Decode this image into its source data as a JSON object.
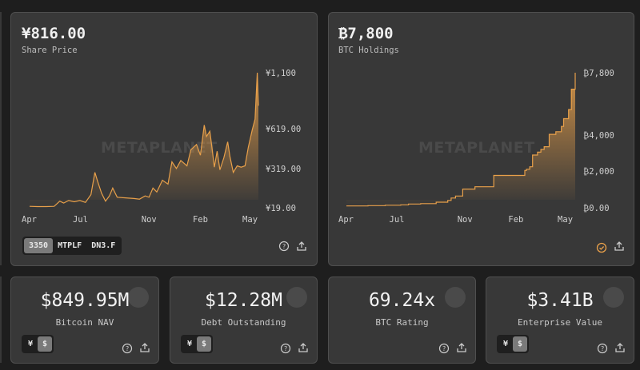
{
  "colors": {
    "accent": "#e8a04a",
    "card": "#383838",
    "background": "#1e1e1e"
  },
  "share_card": {
    "value": "¥816.00",
    "label": "Share Price",
    "watermark": "METAPLANET",
    "tickers": [
      {
        "label": "3350",
        "selected": true
      },
      {
        "label": "MTPLF",
        "selected": false
      },
      {
        "label": "DN3.F",
        "selected": false
      }
    ],
    "icons": [
      "help-circle-icon",
      "share-icon"
    ]
  },
  "btc_card": {
    "value": "₿7,800",
    "label": "BTC Holdings",
    "watermark": "METAPLANET",
    "icons": [
      "verified-check-icon",
      "share-icon"
    ]
  },
  "chart_data": [
    {
      "type": "area",
      "series_label": "Share Price",
      "x_ticks": [
        {
          "label": "Apr",
          "date": "2024-04-01"
        },
        {
          "label": "Jul",
          "date": "2024-07-01"
        },
        {
          "label": "Nov",
          "date": "2024-11-01"
        },
        {
          "label": "Feb",
          "date": "2025-02-01"
        },
        {
          "label": "May",
          "date": "2025-05-01"
        }
      ],
      "y_ticks": [
        {
          "label": "¥19.00",
          "value": 19
        },
        {
          "label": "¥319.00",
          "value": 319
        },
        {
          "label": "¥619.00",
          "value": 619
        },
        {
          "label": "¥1,100",
          "value": 1100
        }
      ],
      "points": [
        [
          "2024-04-01",
          30
        ],
        [
          "2024-04-15",
          28
        ],
        [
          "2024-05-01",
          28
        ],
        [
          "2024-05-15",
          30
        ],
        [
          "2024-05-25",
          70
        ],
        [
          "2024-06-01",
          55
        ],
        [
          "2024-06-10",
          75
        ],
        [
          "2024-06-20",
          65
        ],
        [
          "2024-06-30",
          75
        ],
        [
          "2024-07-10",
          60
        ],
        [
          "2024-07-20",
          120
        ],
        [
          "2024-07-27",
          290
        ],
        [
          "2024-08-01",
          220
        ],
        [
          "2024-08-08",
          130
        ],
        [
          "2024-08-15",
          70
        ],
        [
          "2024-08-22",
          110
        ],
        [
          "2024-08-28",
          170
        ],
        [
          "2024-09-05",
          100
        ],
        [
          "2024-09-20",
          95
        ],
        [
          "2024-10-05",
          90
        ],
        [
          "2024-10-15",
          85
        ],
        [
          "2024-10-25",
          110
        ],
        [
          "2024-11-01",
          100
        ],
        [
          "2024-11-08",
          170
        ],
        [
          "2024-11-15",
          140
        ],
        [
          "2024-11-25",
          230
        ],
        [
          "2024-12-05",
          200
        ],
        [
          "2024-12-12",
          370
        ],
        [
          "2024-12-20",
          320
        ],
        [
          "2024-12-28",
          380
        ],
        [
          "2025-01-08",
          340
        ],
        [
          "2025-01-15",
          460
        ],
        [
          "2025-01-25",
          500
        ],
        [
          "2025-02-01",
          420
        ],
        [
          "2025-02-08",
          650
        ],
        [
          "2025-02-12",
          560
        ],
        [
          "2025-02-18",
          600
        ],
        [
          "2025-02-22",
          470
        ],
        [
          "2025-02-26",
          330
        ],
        [
          "2025-03-03",
          450
        ],
        [
          "2025-03-08",
          310
        ],
        [
          "2025-03-15",
          400
        ],
        [
          "2025-03-22",
          520
        ],
        [
          "2025-03-26",
          410
        ],
        [
          "2025-04-01",
          290
        ],
        [
          "2025-04-08",
          340
        ],
        [
          "2025-04-15",
          330
        ],
        [
          "2025-04-22",
          340
        ],
        [
          "2025-04-28",
          480
        ],
        [
          "2025-05-05",
          610
        ],
        [
          "2025-05-10",
          700
        ],
        [
          "2025-05-14",
          1100
        ],
        [
          "2025-05-16",
          816
        ]
      ]
    },
    {
      "type": "area",
      "step": true,
      "series_label": "BTC Holdings",
      "x_ticks": [
        {
          "label": "Apr",
          "date": "2024-04-01"
        },
        {
          "label": "Jul",
          "date": "2024-07-01"
        },
        {
          "label": "Nov",
          "date": "2024-11-01"
        },
        {
          "label": "Feb",
          "date": "2025-02-01"
        },
        {
          "label": "May",
          "date": "2025-05-01"
        }
      ],
      "y_ticks": [
        {
          "label": "₿0.00",
          "value": 0
        },
        {
          "label": "₿2,000",
          "value": 2000
        },
        {
          "label": "₿4,000",
          "value": 4000
        },
        {
          "label": "₿7,800",
          "value": 7800
        }
      ],
      "points": [
        [
          "2024-04-01",
          98
        ],
        [
          "2024-05-10",
          118
        ],
        [
          "2024-06-10",
          141
        ],
        [
          "2024-07-08",
          161
        ],
        [
          "2024-07-22",
          203
        ],
        [
          "2024-08-13",
          226
        ],
        [
          "2024-09-10",
          303
        ],
        [
          "2024-10-01",
          399
        ],
        [
          "2024-10-07",
          530
        ],
        [
          "2024-10-15",
          640
        ],
        [
          "2024-10-28",
          1018
        ],
        [
          "2024-11-19",
          1142
        ],
        [
          "2024-12-23",
          1762
        ],
        [
          "2025-02-17",
          2031
        ],
        [
          "2025-02-20",
          2100
        ],
        [
          "2025-02-26",
          2235
        ],
        [
          "2025-03-03",
          2888
        ],
        [
          "2025-03-12",
          3050
        ],
        [
          "2025-03-18",
          3200
        ],
        [
          "2025-03-24",
          3350
        ],
        [
          "2025-04-02",
          4046
        ],
        [
          "2025-04-14",
          4206
        ],
        [
          "2025-04-24",
          4525
        ],
        [
          "2025-04-28",
          5000
        ],
        [
          "2025-05-07",
          5555
        ],
        [
          "2025-05-12",
          6796
        ],
        [
          "2025-05-19",
          7800
        ]
      ]
    }
  ],
  "metrics": [
    {
      "value": "$849.95M",
      "label": "Bitcoin NAV",
      "currency_toggle": [
        "¥",
        "$"
      ],
      "selected": "$"
    },
    {
      "value": "$12.28M",
      "label": "Debt Outstanding",
      "currency_toggle": [
        "¥",
        "$"
      ],
      "selected": "$"
    },
    {
      "value": "69.24x",
      "label": "BTC Rating"
    },
    {
      "value": "$3.41B",
      "label": "Enterprise Value",
      "currency_toggle": [
        "¥",
        "$"
      ],
      "selected": "$"
    }
  ]
}
